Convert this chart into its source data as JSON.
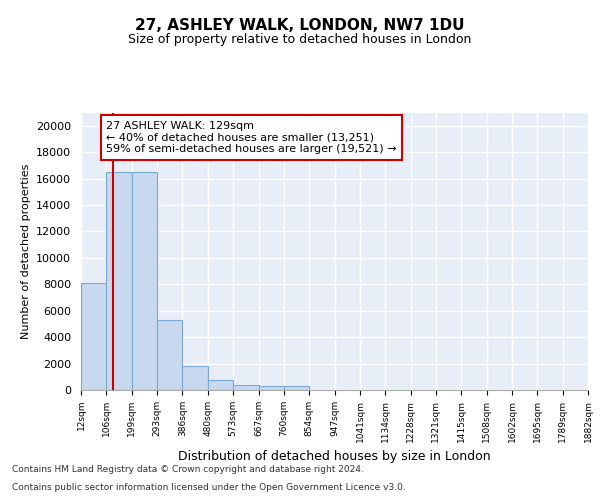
{
  "title1": "27, ASHLEY WALK, LONDON, NW7 1DU",
  "title2": "Size of property relative to detached houses in London",
  "xlabel": "Distribution of detached houses by size in London",
  "ylabel": "Number of detached properties",
  "bin_edges": [
    12,
    106,
    199,
    293,
    386,
    480,
    573,
    667,
    760,
    854,
    947,
    1041,
    1134,
    1228,
    1321,
    1415,
    1508,
    1602,
    1695,
    1789,
    1882
  ],
  "bar_heights": [
    8100,
    16500,
    16500,
    5300,
    1850,
    750,
    400,
    300,
    300,
    0,
    0,
    0,
    0,
    0,
    0,
    0,
    0,
    0,
    0,
    0
  ],
  "bar_color": "#c8d8ee",
  "bar_edge_color": "#7aaad4",
  "property_size": 129,
  "red_line_color": "#cc0000",
  "annotation_line1": "27 ASHLEY WALK: 129sqm",
  "annotation_line2": "← 40% of detached houses are smaller (13,251)",
  "annotation_line3": "59% of semi-detached houses are larger (19,521) →",
  "annotation_box_color": "#ffffff",
  "annotation_box_edge": "#cc0000",
  "footer1": "Contains HM Land Registry data © Crown copyright and database right 2024.",
  "footer2": "Contains public sector information licensed under the Open Government Licence v3.0.",
  "background_color": "#e8eef8",
  "ylim": [
    0,
    21000
  ],
  "yticks": [
    0,
    2000,
    4000,
    6000,
    8000,
    10000,
    12000,
    14000,
    16000,
    18000,
    20000
  ]
}
